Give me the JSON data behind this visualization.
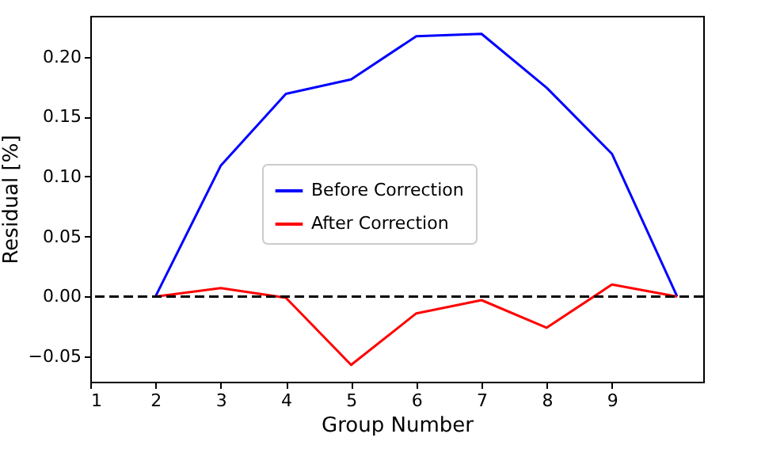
{
  "chart_data": {
    "type": "line",
    "xlabel": "Group Number",
    "ylabel": "Residual [%]",
    "x": [
      2,
      3,
      4,
      5,
      6,
      7,
      8,
      9,
      10
    ],
    "series": [
      {
        "name": "Before Correction",
        "color": "#0000ff",
        "values": [
          0,
          0.109,
          0.169,
          0.181,
          0.217,
          0.219,
          0.174,
          0.119,
          0
        ]
      },
      {
        "name": "After Correction",
        "color": "#ff0000",
        "values": [
          0,
          0.007,
          -0.001,
          -0.057,
          -0.014,
          -0.003,
          -0.026,
          0.01,
          0
        ]
      }
    ],
    "xlim": [
      1,
      10.4
    ],
    "xticks": [
      1,
      2,
      3,
      4,
      5,
      6,
      7,
      8,
      9
    ],
    "ylim": [
      -0.071,
      0.234
    ],
    "yticks": [
      -0.05,
      {
        "value": 0,
        "label": "0.00"
      },
      0.05,
      {
        "value": 0.1,
        "label": "0.10"
      },
      0.15,
      {
        "value": 0.2,
        "label": "0.20"
      }
    ],
    "ref_lines": [
      {
        "axis": "y",
        "value": 0,
        "color": "#000000",
        "line_style": "dashed"
      }
    ],
    "grid": false,
    "legend": "center",
    "marker": "none",
    "line_style": "solid"
  }
}
